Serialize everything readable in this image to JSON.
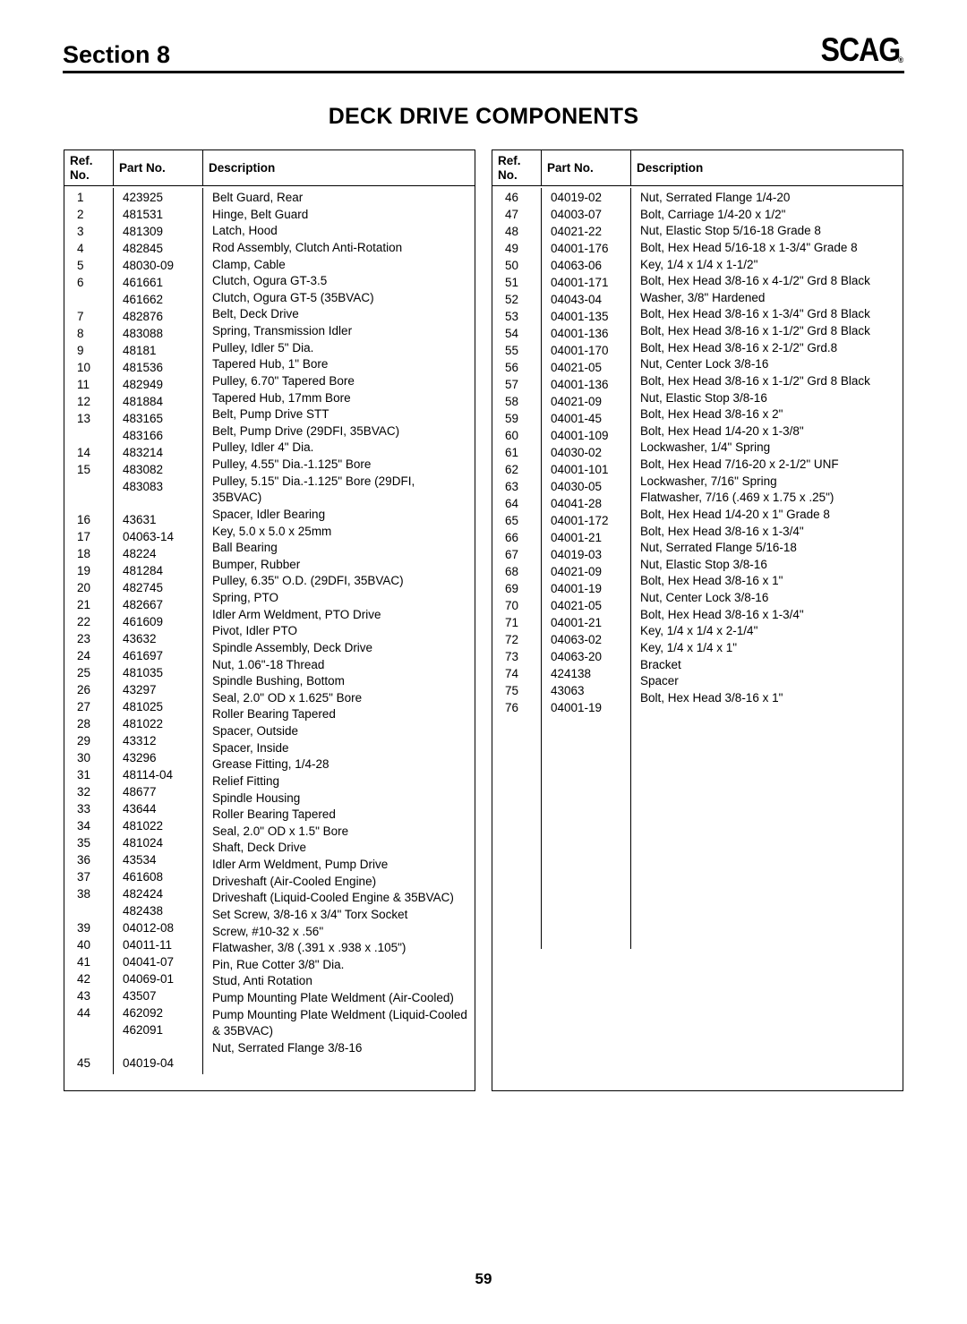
{
  "header": {
    "section_label": "Section 8",
    "brand": "SCAG",
    "brand_reg": "®"
  },
  "title": "DECK DRIVE COMPONENTS",
  "columns": {
    "ref_line1": "Ref.",
    "ref_line2": "No.",
    "part": "Part No.",
    "desc": "Description"
  },
  "page_number": "59",
  "left_rows": [
    {
      "ref": "1",
      "part": "423925",
      "desc": "Belt Guard, Rear"
    },
    {
      "ref": "2",
      "part": "481531",
      "desc": "Hinge, Belt Guard"
    },
    {
      "ref": "3",
      "part": "481309",
      "desc": "Latch, Hood"
    },
    {
      "ref": "4",
      "part": "482845",
      "desc": "Rod Assembly, Clutch Anti-Rotation"
    },
    {
      "ref": "5",
      "part": "48030-09",
      "desc": "Clamp, Cable"
    },
    {
      "ref": "6",
      "part": "461661",
      "desc": "Clutch, Ogura GT-3.5"
    },
    {
      "ref": "",
      "part": "461662",
      "desc": "Clutch, Ogura GT-5 (35BVAC)"
    },
    {
      "ref": "7",
      "part": "482876",
      "desc": "Belt, Deck Drive"
    },
    {
      "ref": "8",
      "part": "483088",
      "desc": "Spring, Transmission Idler"
    },
    {
      "ref": "9",
      "part": "48181",
      "desc": "Pulley, Idler 5\" Dia."
    },
    {
      "ref": "10",
      "part": "481536",
      "desc": "Tapered Hub, 1\" Bore"
    },
    {
      "ref": "11",
      "part": "482949",
      "desc": "Pulley, 6.70\" Tapered Bore"
    },
    {
      "ref": "12",
      "part": "481884",
      "desc": "Tapered Hub, 17mm Bore"
    },
    {
      "ref": "13",
      "part": "483165",
      "desc": "Belt, Pump Drive STT"
    },
    {
      "ref": "",
      "part": "483166",
      "desc": "Belt, Pump Drive (29DFI, 35BVAC)"
    },
    {
      "ref": "14",
      "part": "483214",
      "desc": "Pulley, Idler 4\" Dia."
    },
    {
      "ref": "15",
      "part": "483082",
      "desc": "Pulley, 4.55\" Dia.-1.125\" Bore"
    },
    {
      "ref": "",
      "part": "483083",
      "desc": "Pulley, 5.15\" Dia.-1.125\" Bore (29DFI, 35BVAC)"
    },
    {
      "ref": "16",
      "part": "43631",
      "desc": "Spacer, Idler Bearing"
    },
    {
      "ref": "17",
      "part": "04063-14",
      "desc": "Key, 5.0 x 5.0 x 25mm"
    },
    {
      "ref": "18",
      "part": "48224",
      "desc": "Ball Bearing"
    },
    {
      "ref": "19",
      "part": "481284",
      "desc": "Bumper, Rubber"
    },
    {
      "ref": "20",
      "part": "482745",
      "desc": "Pulley,  6.35\" O.D. (29DFI, 35BVAC)"
    },
    {
      "ref": "21",
      "part": "482667",
      "desc": "Spring, PTO"
    },
    {
      "ref": "22",
      "part": "461609",
      "desc": "Idler Arm Weldment, PTO Drive"
    },
    {
      "ref": "23",
      "part": "43632",
      "desc": "Pivot, Idler PTO"
    },
    {
      "ref": "24",
      "part": "461697",
      "desc": "Spindle Assembly, Deck Drive"
    },
    {
      "ref": "25",
      "part": "481035",
      "desc": "Nut, 1.06\"-18 Thread"
    },
    {
      "ref": "26",
      "part": "43297",
      "desc": "Spindle Bushing, Bottom"
    },
    {
      "ref": "27",
      "part": "481025",
      "desc": "Seal, 2.0\" OD x 1.625\" Bore"
    },
    {
      "ref": "28",
      "part": "481022",
      "desc": "Roller Bearing Tapered"
    },
    {
      "ref": "29",
      "part": "43312",
      "desc": "Spacer, Outside"
    },
    {
      "ref": "30",
      "part": "43296",
      "desc": "Spacer, Inside"
    },
    {
      "ref": "31",
      "part": "48114-04",
      "desc": "Grease Fitting, 1/4-28"
    },
    {
      "ref": "32",
      "part": "48677",
      "desc": "Relief Fitting"
    },
    {
      "ref": "33",
      "part": "43644",
      "desc": "Spindle Housing"
    },
    {
      "ref": "34",
      "part": "481022",
      "desc": "Roller Bearing Tapered"
    },
    {
      "ref": "35",
      "part": "481024",
      "desc": "Seal, 2.0\" OD x 1.5\" Bore"
    },
    {
      "ref": "36",
      "part": "43534",
      "desc": "Shaft, Deck Drive"
    },
    {
      "ref": "37",
      "part": "461608",
      "desc": "Idler Arm Weldment, Pump Drive"
    },
    {
      "ref": "38",
      "part": "482424",
      "desc": "Driveshaft (Air-Cooled Engine)"
    },
    {
      "ref": "",
      "part": "482438",
      "desc": "Driveshaft (Liquid-Cooled Engine & 35BVAC)"
    },
    {
      "ref": "39",
      "part": "04012-08",
      "desc": "Set Screw, 3/8-16 x 3/4\" Torx Socket"
    },
    {
      "ref": "40",
      "part": "04011-11",
      "desc": "Screw, #10-32 x .56\""
    },
    {
      "ref": "41",
      "part": "04041-07",
      "desc": "Flatwasher, 3/8 (.391 x .938 x .105\")"
    },
    {
      "ref": "42",
      "part": "04069-01",
      "desc": "Pin, Rue Cotter 3/8\" Dia."
    },
    {
      "ref": "43",
      "part": "43507",
      "desc": "Stud, Anti Rotation"
    },
    {
      "ref": "44",
      "part": "462092",
      "desc": "Pump Mounting Plate Weldment (Air-Cooled)"
    },
    {
      "ref": "",
      "part": "462091",
      "desc": "Pump Mounting Plate Weldment (Liquid-Cooled & 35BVAC)"
    },
    {
      "ref": "45",
      "part": "04019-04",
      "desc": "Nut, Serrated Flange 3/8-16"
    }
  ],
  "right_rows": [
    {
      "ref": "46",
      "part": "04019-02",
      "desc": "Nut, Serrated Flange 1/4-20"
    },
    {
      "ref": "47",
      "part": "04003-07",
      "desc": "Bolt, Carriage 1/4-20 x 1/2\""
    },
    {
      "ref": "48",
      "part": "04021-22",
      "desc": "Nut, Elastic Stop 5/16-18 Grade 8"
    },
    {
      "ref": "49",
      "part": "04001-176",
      "desc": "Bolt, Hex Head 5/16-18 x 1-3/4\" Grade 8"
    },
    {
      "ref": "50",
      "part": "04063-06",
      "desc": "Key, 1/4 x 1/4 x 1-1/2\""
    },
    {
      "ref": "51",
      "part": "04001-171",
      "desc": "Bolt, Hex Head 3/8-16 x 4-1/2\" Grd 8 Black"
    },
    {
      "ref": "52",
      "part": "04043-04",
      "desc": "Washer, 3/8\" Hardened"
    },
    {
      "ref": "53",
      "part": "04001-135",
      "desc": "Bolt, Hex Head 3/8-16 x 1-3/4\" Grd 8 Black"
    },
    {
      "ref": "54",
      "part": "04001-136",
      "desc": "Bolt, Hex Head 3/8-16 x 1-1/2\" Grd 8 Black"
    },
    {
      "ref": "55",
      "part": "04001-170",
      "desc": "Bolt, Hex Head 3/8-16 x 2-1/2\" Grd.8"
    },
    {
      "ref": "56",
      "part": "04021-05",
      "desc": "Nut, Center Lock 3/8-16"
    },
    {
      "ref": "57",
      "part": "04001-136",
      "desc": "Bolt, Hex Head 3/8-16 x 1-1/2\" Grd 8 Black"
    },
    {
      "ref": "58",
      "part": "04021-09",
      "desc": "Nut, Elastic Stop 3/8-16"
    },
    {
      "ref": "59",
      "part": "04001-45",
      "desc": "Bolt, Hex Head 3/8-16 x 2\""
    },
    {
      "ref": "60",
      "part": "04001-109",
      "desc": "Bolt, Hex Head 1/4-20 x 1-3/8\""
    },
    {
      "ref": "61",
      "part": "04030-02",
      "desc": "Lockwasher, 1/4\" Spring"
    },
    {
      "ref": "62",
      "part": "04001-101",
      "desc": "Bolt, Hex Head 7/16-20 x 2-1/2\" UNF"
    },
    {
      "ref": "63",
      "part": "04030-05",
      "desc": "Lockwasher, 7/16\" Spring"
    },
    {
      "ref": "64",
      "part": "04041-28",
      "desc": "Flatwasher, 7/16 (.469 x 1.75 x .25\")"
    },
    {
      "ref": "65",
      "part": "04001-172",
      "desc": "Bolt, Hex Head 1/4-20 x 1\" Grade 8"
    },
    {
      "ref": "66",
      "part": "04001-21",
      "desc": "Bolt, Hex Head 3/8-16 x 1-3/4\""
    },
    {
      "ref": "67",
      "part": "04019-03",
      "desc": "Nut, Serrated Flange 5/16-18"
    },
    {
      "ref": "68",
      "part": "04021-09",
      "desc": "Nut, Elastic Stop 3/8-16"
    },
    {
      "ref": "69",
      "part": "04001-19",
      "desc": "Bolt, Hex Head 3/8-16 x 1\""
    },
    {
      "ref": "70",
      "part": "04021-05",
      "desc": "Nut, Center Lock 3/8-16"
    },
    {
      "ref": "71",
      "part": "04001-21",
      "desc": "Bolt, Hex Head 3/8-16 x 1-3/4\""
    },
    {
      "ref": "72",
      "part": "04063-02",
      "desc": "Key, 1/4 x 1/4 x 2-1/4\""
    },
    {
      "ref": "73",
      "part": "04063-20",
      "desc": "Key, 1/4 x 1/4 x 1\""
    },
    {
      "ref": "74",
      "part": "424138",
      "desc": "Bracket"
    },
    {
      "ref": "75",
      "part": "43063",
      "desc": "Spacer"
    },
    {
      "ref": "76",
      "part": "04001-19",
      "desc": "Bolt, Hex Head 3/8-16 x 1\""
    }
  ]
}
